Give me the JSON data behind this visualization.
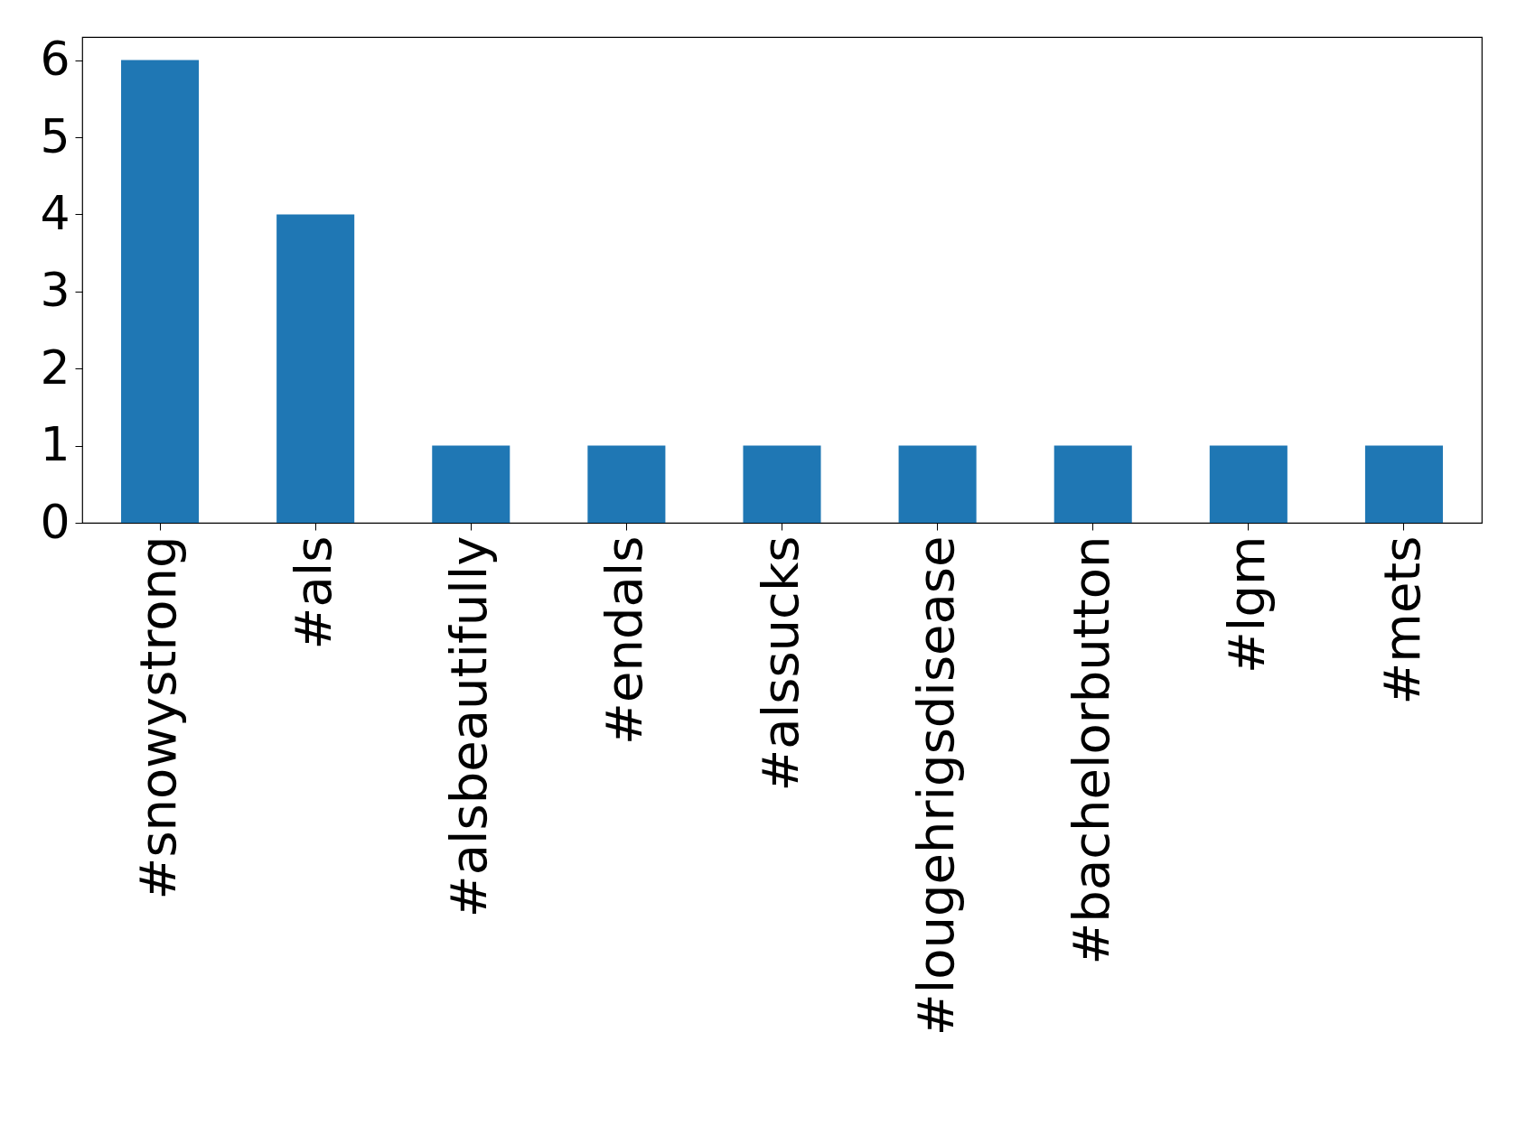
{
  "chart_data": {
    "type": "bar",
    "categories": [
      "#snowystrong",
      "#als",
      "#alsbeautifully",
      "#endals",
      "#alssucks",
      "#lougehrigsdisease",
      "#bachelorbutton",
      "#lgm",
      "#mets"
    ],
    "values": [
      6,
      4,
      1,
      1,
      1,
      1,
      1,
      1,
      1
    ],
    "color": "#1f77b4",
    "ylim": [
      0,
      6.3
    ],
    "yticks": [
      0,
      1,
      2,
      3,
      4,
      5,
      6
    ],
    "grid": false
  }
}
